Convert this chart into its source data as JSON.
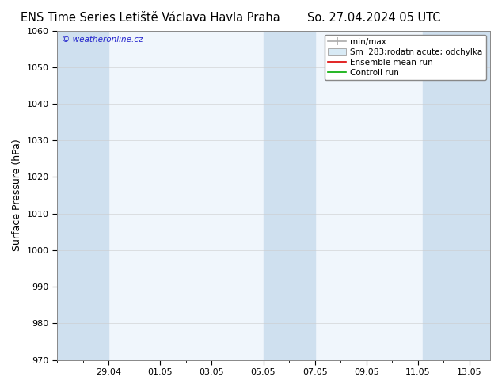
{
  "title_left": "ENS Time Series Letiště Václava Havla Praha",
  "title_right": "So. 27.04.2024 05 UTC",
  "ylabel": "Surface Pressure (hPa)",
  "ylim": [
    970,
    1060
  ],
  "yticks": [
    970,
    980,
    990,
    1000,
    1010,
    1020,
    1030,
    1040,
    1050,
    1060
  ],
  "xtick_labels": [
    "29.04",
    "01.05",
    "03.05",
    "05.05",
    "07.05",
    "09.05",
    "11.05",
    "13.05"
  ],
  "xtick_positions": [
    2,
    4,
    6,
    8,
    10,
    12,
    14,
    16
  ],
  "xlim": [
    0,
    16.8
  ],
  "fig_bg_color": "#ffffff",
  "plot_bg_color": "#f0f6fc",
  "band_color": "#cfe0ef",
  "band_positions": [
    0.0,
    1.6,
    8.0,
    9.6,
    14.2,
    15.8
  ],
  "band_widths": [
    1.6,
    0.4,
    1.6,
    0.4,
    1.6,
    1.0
  ],
  "watermark": "© weatheronline.cz",
  "watermark_color": "#2222cc",
  "title_fontsize": 10.5,
  "ylabel_fontsize": 9,
  "tick_fontsize": 8,
  "legend_fontsize": 7.5
}
